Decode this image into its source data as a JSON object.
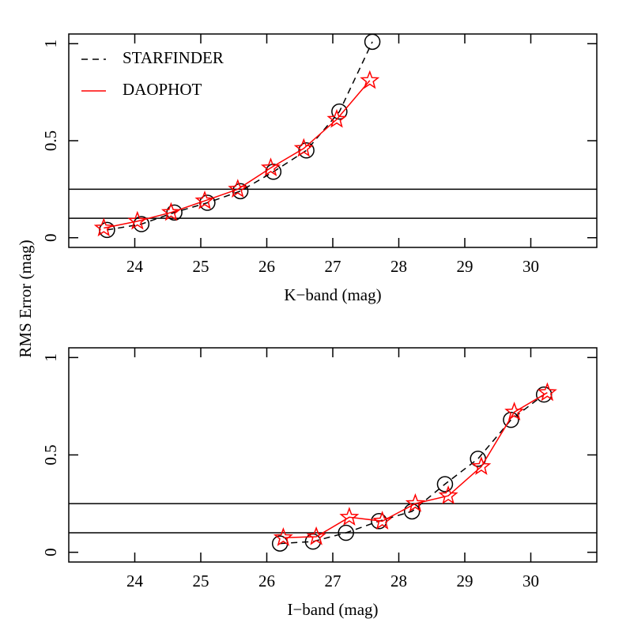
{
  "chart_data": [
    {
      "type": "line",
      "xlabel": "K−band (mag)",
      "ylabel": "RMS Error (mag)",
      "xlim": [
        23,
        31
      ],
      "ylim": [
        -0.05,
        1.05
      ],
      "xticks": [
        24,
        25,
        26,
        27,
        28,
        29,
        30
      ],
      "yticks": [
        0,
        0.5,
        1
      ],
      "hlines": [
        0.1,
        0.25
      ],
      "legend": true,
      "series": [
        {
          "name": "STARFINDER",
          "color": "#000000",
          "linestyle": "dashed",
          "marker": "circle",
          "x": [
            23.58,
            24.1,
            24.6,
            25.1,
            25.6,
            26.1,
            26.6,
            27.1,
            27.6
          ],
          "values": [
            0.04,
            0.07,
            0.13,
            0.18,
            0.24,
            0.34,
            0.45,
            0.65,
            1.01
          ]
        },
        {
          "name": "DAOPHOT",
          "color": "#ff0000",
          "linestyle": "solid",
          "marker": "star",
          "x": [
            23.53,
            24.04,
            24.55,
            25.06,
            25.56,
            26.06,
            26.56,
            27.06,
            27.56
          ],
          "values": [
            0.05,
            0.085,
            0.13,
            0.19,
            0.25,
            0.36,
            0.46,
            0.61,
            0.81
          ]
        }
      ]
    },
    {
      "type": "line",
      "xlabel": "I−band (mag)",
      "xlim": [
        23,
        31
      ],
      "ylim": [
        -0.05,
        1.05
      ],
      "xticks": [
        24,
        25,
        26,
        27,
        28,
        29,
        30
      ],
      "yticks": [
        0,
        0.5,
        1
      ],
      "hlines": [
        0.1,
        0.25
      ],
      "legend": false,
      "series": [
        {
          "name": "STARFINDER",
          "color": "#000000",
          "linestyle": "dashed",
          "marker": "circle",
          "x": [
            26.2,
            26.7,
            27.2,
            27.7,
            28.2,
            28.7,
            29.2,
            29.7,
            30.2
          ],
          "values": [
            0.045,
            0.055,
            0.1,
            0.16,
            0.21,
            0.35,
            0.48,
            0.68,
            0.81
          ]
        },
        {
          "name": "DAOPHOT",
          "color": "#ff0000",
          "linestyle": "solid",
          "marker": "star",
          "x": [
            26.25,
            26.75,
            27.25,
            27.75,
            28.25,
            28.75,
            29.25,
            29.75,
            30.25
          ],
          "values": [
            0.075,
            0.08,
            0.18,
            0.16,
            0.25,
            0.29,
            0.44,
            0.72,
            0.82
          ]
        }
      ]
    }
  ]
}
